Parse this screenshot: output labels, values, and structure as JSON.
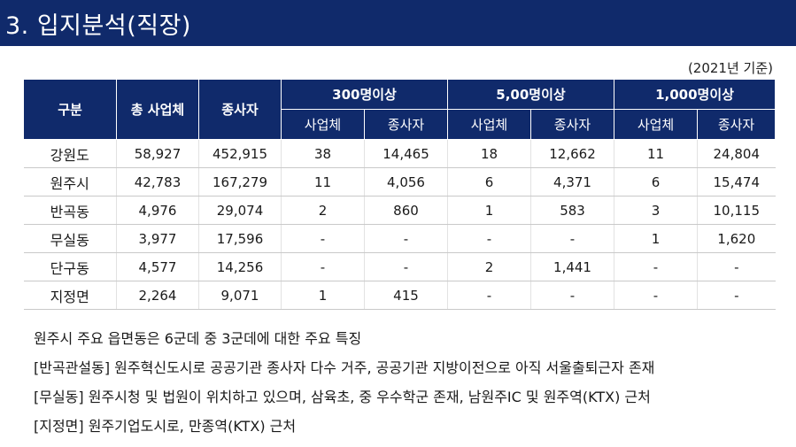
{
  "title": "3. 입지분석(직장)",
  "unit_note": "(2021년 기준)",
  "table": {
    "header": {
      "category": "구분",
      "total_biz": "총 사업체",
      "employees": "종사자",
      "group_300": "300명이상",
      "group_500": "5,00명이상",
      "group_1000": "1,000명이상",
      "sub_biz": "사업체",
      "sub_emp": "종사자"
    },
    "rows": [
      {
        "name": "강원도",
        "total": "58,927",
        "emp": "452,915",
        "b300": "38",
        "e300": "14,465",
        "b500": "18",
        "e500": "12,662",
        "b1000": "11",
        "e1000": "24,804"
      },
      {
        "name": "원주시",
        "total": "42,783",
        "emp": "167,279",
        "b300": "11",
        "e300": "4,056",
        "b500": "6",
        "e500": "4,371",
        "b1000": "6",
        "e1000": "15,474"
      },
      {
        "name": "반곡동",
        "total": "4,976",
        "emp": "29,074",
        "b300": "2",
        "e300": "860",
        "b500": "1",
        "e500": "583",
        "b1000": "3",
        "e1000": "10,115"
      },
      {
        "name": "무실동",
        "total": "3,977",
        "emp": "17,596",
        "b300": "-",
        "e300": "-",
        "b500": "-",
        "e500": "-",
        "b1000": "1",
        "e1000": "1,620"
      },
      {
        "name": "단구동",
        "total": "4,577",
        "emp": "14,256",
        "b300": "-",
        "e300": "-",
        "b500": "2",
        "e500": "1,441",
        "b1000": "-",
        "e1000": "-"
      },
      {
        "name": "지정면",
        "total": "2,264",
        "emp": "9,071",
        "b300": "1",
        "e300": "415",
        "b500": "-",
        "e500": "-",
        "b1000": "-",
        "e1000": "-"
      }
    ]
  },
  "notes": [
    "원주시 주요 읍면동은 6군데 중 3군데에 대한 주요 특징",
    "[반곡관설동] 원주혁신도시로 공공기관 종사자 다수 거주, 공공기관 지방이전으로 아직 서울출퇴근자 존재",
    "[무실동] 원주시청 및 법원이 위치하고 있으며, 삼육초, 중 우수학군 존재, 남원주IC  및 원주역(KTX) 근처",
    "[지정면] 원주기업도시로, 만종역(KTX) 근처"
  ]
}
